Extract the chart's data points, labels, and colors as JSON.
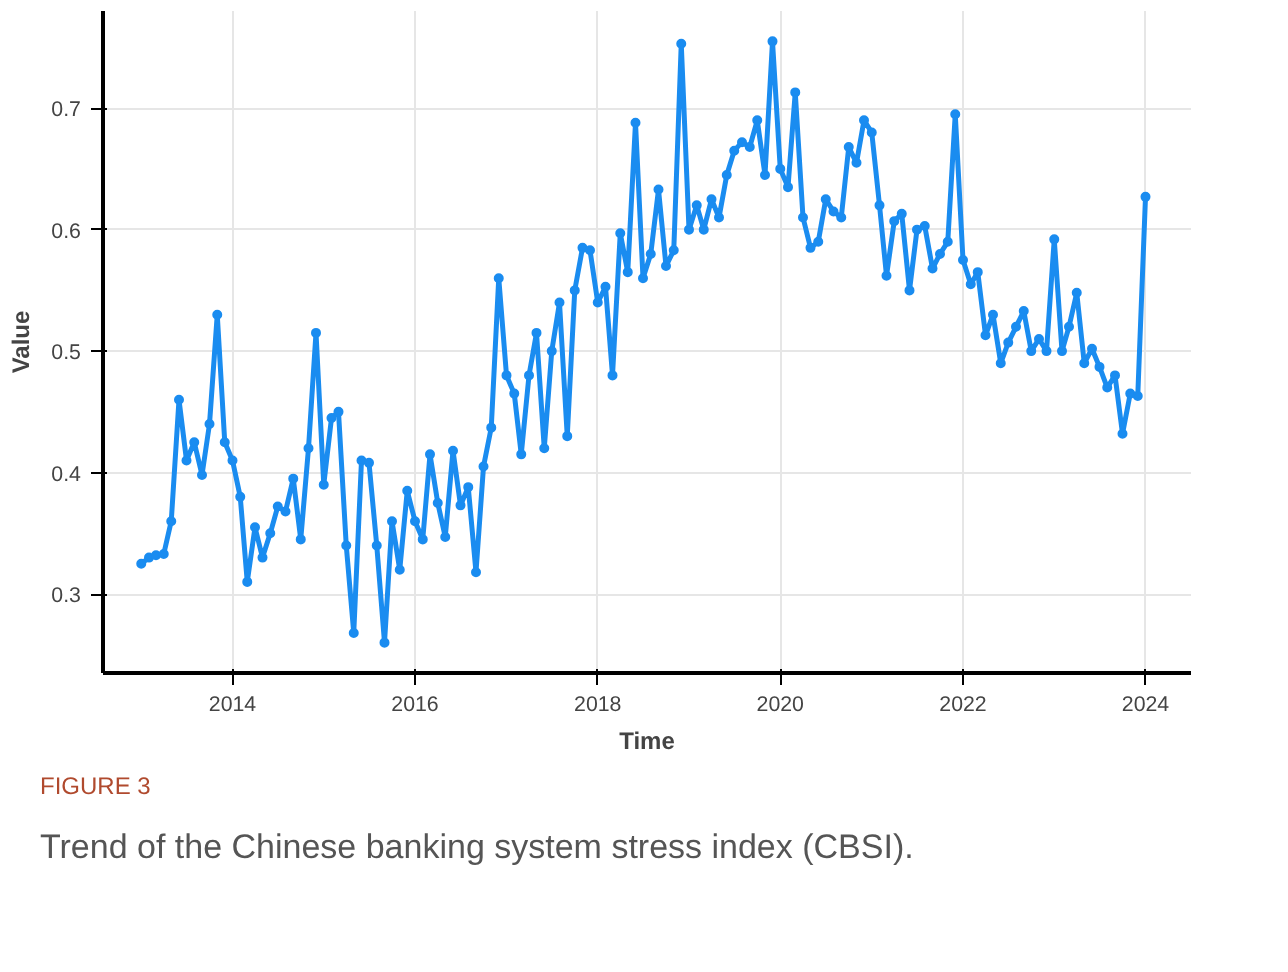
{
  "chart_data": {
    "type": "line",
    "xlabel": "Time",
    "ylabel": "Value",
    "annotations": [
      "FIGURE 3",
      "Trend of the Chinese banking system stress index (CBSI)."
    ],
    "x": [
      "2013-01",
      "2013-02",
      "2013-03",
      "2013-04",
      "2013-05",
      "2013-06",
      "2013-07",
      "2013-08",
      "2013-09",
      "2013-10",
      "2013-11",
      "2013-12",
      "2014-01",
      "2014-02",
      "2014-03",
      "2014-04",
      "2014-05",
      "2014-06",
      "2014-07",
      "2014-08",
      "2014-09",
      "2014-10",
      "2014-11",
      "2014-12",
      "2015-01",
      "2015-02",
      "2015-03",
      "2015-04",
      "2015-05",
      "2015-06",
      "2015-07",
      "2015-08",
      "2015-09",
      "2015-10",
      "2015-11",
      "2015-12",
      "2016-01",
      "2016-02",
      "2016-03",
      "2016-04",
      "2016-05",
      "2016-06",
      "2016-07",
      "2016-08",
      "2016-09",
      "2016-10",
      "2016-11",
      "2016-12",
      "2017-01",
      "2017-02",
      "2017-03",
      "2017-04",
      "2017-05",
      "2017-06",
      "2017-07",
      "2017-08",
      "2017-09",
      "2017-10",
      "2017-11",
      "2017-12",
      "2018-01",
      "2018-02",
      "2018-03",
      "2018-04",
      "2018-05",
      "2018-06",
      "2018-07",
      "2018-08",
      "2018-09",
      "2018-10",
      "2018-11",
      "2018-12",
      "2019-01",
      "2019-02",
      "2019-03",
      "2019-04",
      "2019-05",
      "2019-06",
      "2019-07",
      "2019-08",
      "2019-09",
      "2019-10",
      "2019-11",
      "2019-12",
      "2020-01",
      "2020-02",
      "2020-03",
      "2020-04",
      "2020-05",
      "2020-06",
      "2020-07",
      "2020-08",
      "2020-09",
      "2020-10",
      "2020-11",
      "2020-12",
      "2021-01",
      "2021-02",
      "2021-03",
      "2021-04",
      "2021-05",
      "2021-06",
      "2021-07",
      "2021-08",
      "2021-09",
      "2021-10",
      "2021-11",
      "2021-12",
      "2022-01",
      "2022-02",
      "2022-03",
      "2022-04",
      "2022-05",
      "2022-06",
      "2022-07",
      "2022-08",
      "2022-09",
      "2022-10",
      "2022-11",
      "2022-12",
      "2023-01",
      "2023-02",
      "2023-03",
      "2023-04",
      "2023-05",
      "2023-06",
      "2023-07",
      "2023-08",
      "2023-09",
      "2023-10",
      "2023-11",
      "2023-12",
      "2024-01"
    ],
    "series": [
      {
        "color": "#1a8cf0",
        "values": [
          0.325,
          0.33,
          0.332,
          0.333,
          0.36,
          0.46,
          0.41,
          0.425,
          0.398,
          0.44,
          0.53,
          0.425,
          0.41,
          0.38,
          0.31,
          0.355,
          0.33,
          0.35,
          0.372,
          0.368,
          0.395,
          0.345,
          0.42,
          0.515,
          0.39,
          0.445,
          0.45,
          0.34,
          0.268,
          0.41,
          0.408,
          0.34,
          0.26,
          0.36,
          0.32,
          0.385,
          0.36,
          0.345,
          0.415,
          0.375,
          0.347,
          0.418,
          0.373,
          0.388,
          0.318,
          0.405,
          0.437,
          0.56,
          0.48,
          0.465,
          0.415,
          0.48,
          0.515,
          0.42,
          0.5,
          0.54,
          0.43,
          0.55,
          0.585,
          0.583,
          0.54,
          0.553,
          0.48,
          0.597,
          0.565,
          0.688,
          0.56,
          0.58,
          0.633,
          0.57,
          0.583,
          0.753,
          0.6,
          0.62,
          0.6,
          0.625,
          0.61,
          0.645,
          0.665,
          0.672,
          0.668,
          0.69,
          0.645,
          0.755,
          0.65,
          0.635,
          0.713,
          0.61,
          0.585,
          0.59,
          0.625,
          0.615,
          0.61,
          0.668,
          0.655,
          0.69,
          0.68,
          0.62,
          0.562,
          0.607,
          0.613,
          0.55,
          0.6,
          0.603,
          0.568,
          0.58,
          0.59,
          0.695,
          0.575,
          0.555,
          0.565,
          0.513,
          0.53,
          0.49,
          0.507,
          0.52,
          0.533,
          0.5,
          0.51,
          0.5,
          0.592,
          0.5,
          0.52,
          0.548,
          0.49,
          0.502,
          0.487,
          0.47,
          0.48,
          0.432,
          0.465,
          0.463,
          0.627
        ]
      }
    ],
    "xlim": [
      "2012-08",
      "2024-07"
    ],
    "xticks": [
      "2014",
      "2016",
      "2018",
      "2020",
      "2022",
      "2024"
    ],
    "ylim": [
      0.235,
      0.78
    ],
    "yticks": [
      0.3,
      0.4,
      0.5,
      0.6,
      0.7
    ],
    "grid": true,
    "marker": "circle",
    "line_style": "solid"
  }
}
